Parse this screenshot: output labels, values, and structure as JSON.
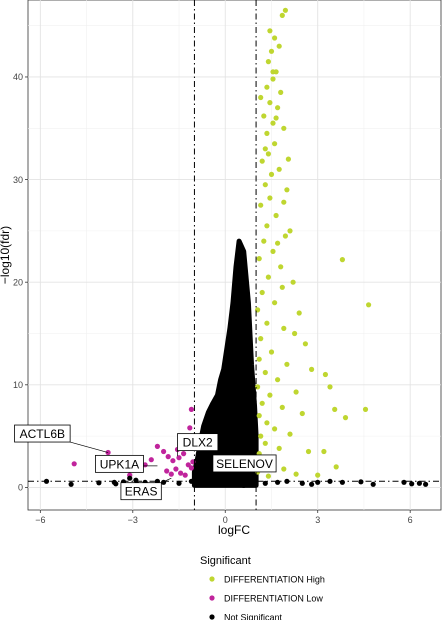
{
  "chart_data": {
    "type": "scatter",
    "xlabel": "logFC",
    "ylabel": "−log10(fdr)",
    "xlim": [
      -6.4,
      7.0
    ],
    "ylim": [
      -2.2,
      47.5
    ],
    "x_ticks": [
      -6,
      -3,
      0,
      3,
      6
    ],
    "y_ticks": [
      0,
      10,
      20,
      30,
      40
    ],
    "x_tick_labels": [
      "−6",
      "−3",
      "0",
      "3",
      "6"
    ],
    "y_tick_labels": [
      "0",
      "10",
      "20",
      "30",
      "40"
    ],
    "grid": true,
    "reference_lines": {
      "vertical": [
        -1,
        1
      ],
      "horizontal": [
        0.6
      ],
      "style": "dash-dot"
    },
    "legend": {
      "title": "Significant",
      "position": "bottom",
      "entries": [
        {
          "label": "DIFFERENTIATION High",
          "color": "#bfd630"
        },
        {
          "label": "DIFFERENTIATION Low",
          "color": "#c0249c"
        },
        {
          "label": "Not Significant",
          "color": "#000000"
        }
      ]
    },
    "series": [
      {
        "name": "DIFFERENTIATION High",
        "color": "#bfd630",
        "points": [
          [
            1.95,
            46.5
          ],
          [
            1.85,
            46.0
          ],
          [
            1.45,
            44.5
          ],
          [
            1.6,
            43.8
          ],
          [
            1.75,
            43.0
          ],
          [
            1.5,
            42.5
          ],
          [
            1.4,
            41.5
          ],
          [
            1.65,
            40.5
          ],
          [
            1.55,
            39.8
          ],
          [
            1.35,
            39.0
          ],
          [
            1.8,
            38.5
          ],
          [
            1.45,
            37.5
          ],
          [
            1.7,
            37.0
          ],
          [
            1.25,
            36.2
          ],
          [
            1.55,
            35.5
          ],
          [
            1.9,
            35.0
          ],
          [
            1.35,
            34.5
          ],
          [
            1.6,
            33.5
          ],
          [
            1.4,
            32.5
          ],
          [
            1.2,
            31.8
          ],
          [
            1.75,
            31.0
          ],
          [
            1.5,
            30.5
          ],
          [
            1.3,
            29.5
          ],
          [
            2.0,
            29.0
          ],
          [
            1.45,
            28.2
          ],
          [
            1.15,
            27.5
          ],
          [
            1.65,
            26.5
          ],
          [
            1.35,
            25.5
          ],
          [
            2.1,
            25.0
          ],
          [
            1.25,
            24.0
          ],
          [
            1.55,
            23.0
          ],
          [
            1.1,
            22.3
          ],
          [
            1.8,
            21.5
          ],
          [
            1.4,
            20.5
          ],
          [
            2.2,
            20.0
          ],
          [
            1.2,
            19.0
          ],
          [
            1.6,
            18.0
          ],
          [
            1.05,
            17.3
          ],
          [
            2.4,
            17.0
          ],
          [
            1.35,
            16.0
          ],
          [
            1.9,
            15.5
          ],
          [
            1.15,
            14.5
          ],
          [
            2.6,
            14.0
          ],
          [
            1.5,
            13.2
          ],
          [
            1.1,
            12.5
          ],
          [
            2.0,
            12.0
          ],
          [
            1.3,
            11.2
          ],
          [
            2.8,
            11.5
          ],
          [
            1.7,
            10.5
          ],
          [
            1.05,
            9.8
          ],
          [
            1.45,
            9.0
          ],
          [
            2.3,
            9.3
          ],
          [
            1.2,
            8.2
          ],
          [
            1.85,
            7.8
          ],
          [
            1.1,
            7.0
          ],
          [
            2.5,
            7.2
          ],
          [
            1.35,
            6.3
          ],
          [
            1.6,
            5.7
          ],
          [
            1.15,
            5.0
          ],
          [
            2.1,
            5.2
          ],
          [
            1.3,
            4.3
          ],
          [
            1.75,
            3.8
          ],
          [
            1.1,
            3.3
          ],
          [
            2.7,
            3.5
          ],
          [
            1.5,
            2.7
          ],
          [
            1.2,
            2.1
          ],
          [
            1.9,
            1.8
          ],
          [
            1.05,
            1.5
          ],
          [
            1.4,
            1.1
          ],
          [
            2.3,
            1.3
          ],
          [
            1.7,
            23.8
          ],
          [
            1.9,
            27.8
          ],
          [
            1.3,
            33.0
          ],
          [
            1.65,
            36.0
          ],
          [
            2.05,
            32.0
          ],
          [
            1.85,
            19.5
          ],
          [
            2.25,
            15.0
          ],
          [
            1.15,
            38.0
          ],
          [
            1.55,
            40.5
          ],
          [
            1.95,
            24.5
          ],
          [
            3.8,
            22.2
          ],
          [
            4.65,
            17.8
          ],
          [
            3.25,
            11.0
          ],
          [
            3.4,
            9.8
          ],
          [
            3.55,
            7.6
          ],
          [
            3.9,
            6.8
          ],
          [
            4.55,
            7.6
          ],
          [
            3.2,
            3.5
          ],
          [
            3.6,
            2.0
          ],
          [
            3.0,
            1.2
          ]
        ]
      },
      {
        "name": "DIFFERENTIATION Low",
        "color": "#c0249c",
        "points": [
          [
            -4.9,
            2.3
          ],
          [
            -3.8,
            3.4
          ],
          [
            -3.1,
            1.2
          ],
          [
            -2.6,
            2.2
          ],
          [
            -2.2,
            4.0
          ],
          [
            -2.0,
            3.5
          ],
          [
            -1.85,
            3.0
          ],
          [
            -1.7,
            2.6
          ],
          [
            -1.5,
            2.9
          ],
          [
            -1.35,
            3.3
          ],
          [
            -1.25,
            4.5
          ],
          [
            -1.15,
            5.8
          ],
          [
            -1.1,
            7.6
          ],
          [
            -1.2,
            2.2
          ],
          [
            -1.6,
            1.8
          ],
          [
            -1.9,
            1.6
          ],
          [
            -1.45,
            1.4
          ],
          [
            -1.1,
            1.9
          ],
          [
            -1.3,
            1.2
          ],
          [
            -1.05,
            2.5
          ],
          [
            -2.4,
            2.7
          ],
          [
            -1.75,
            1.3
          ],
          [
            -1.55,
            3.7
          ]
        ]
      },
      {
        "name": "Not Significant",
        "color": "#000000",
        "points": [
          [
            -5.8,
            0.6
          ],
          [
            -4.1,
            0.45
          ],
          [
            -3.6,
            0.5
          ],
          [
            -3.3,
            0.55
          ],
          [
            -3.1,
            0.9
          ],
          [
            -2.9,
            0.7
          ],
          [
            -2.6,
            0.5
          ],
          [
            -2.2,
            0.6
          ],
          [
            -2.0,
            0.5
          ],
          [
            -1.5,
            0.4
          ],
          [
            -1.1,
            0.6
          ],
          [
            1.3,
            0.4
          ],
          [
            1.7,
            0.5
          ],
          [
            2.0,
            0.6
          ],
          [
            2.5,
            0.4
          ],
          [
            3.0,
            0.5
          ],
          [
            3.4,
            0.6
          ],
          [
            3.8,
            0.5
          ],
          [
            4.4,
            0.55
          ],
          [
            5.8,
            0.5
          ],
          [
            6.05,
            0.35
          ],
          [
            6.3,
            0.4
          ],
          [
            6.5,
            0.3
          ],
          [
            4.8,
            0.3
          ],
          [
            2.8,
            0.3
          ],
          [
            -2.85,
            0.3
          ],
          [
            -3.55,
            0.35
          ],
          [
            -5.0,
            0.3
          ],
          [
            -3.0,
            0.2
          ],
          [
            0.6,
            0.2
          ]
        ]
      }
    ],
    "dense_cloud": {
      "series": "Not Significant",
      "color": "#000000",
      "outline": [
        [
          -1.0,
          0.2
        ],
        [
          -1.0,
          1.5
        ],
        [
          -0.9,
          2.8
        ],
        [
          -0.8,
          4.5
        ],
        [
          -0.7,
          6.0
        ],
        [
          -0.55,
          7.3
        ],
        [
          -0.4,
          8.2
        ],
        [
          -0.25,
          9.0
        ],
        [
          -0.15,
          10.5
        ],
        [
          -0.05,
          11.5
        ],
        [
          0.05,
          13.5
        ],
        [
          0.15,
          15.5
        ],
        [
          0.25,
          18.0
        ],
        [
          0.35,
          21.5
        ],
        [
          0.45,
          24.0
        ],
        [
          0.6,
          23.0
        ],
        [
          0.75,
          18.0
        ],
        [
          0.85,
          12.0
        ],
        [
          0.95,
          8.0
        ],
        [
          1.0,
          5.0
        ],
        [
          1.0,
          0.2
        ]
      ]
    },
    "annotations": [
      {
        "text": "ACTL6B",
        "x": -3.8,
        "y": 3.4
      },
      {
        "text": "UPK1A",
        "x": -2.2,
        "y": 2.1
      },
      {
        "text": "DLX2",
        "x": -1.55,
        "y": 3.05
      },
      {
        "text": "ERAS",
        "x": -1.75,
        "y": 0.9
      },
      {
        "text": "SELENOV",
        "x": 0.3,
        "y": 1.85
      }
    ]
  }
}
